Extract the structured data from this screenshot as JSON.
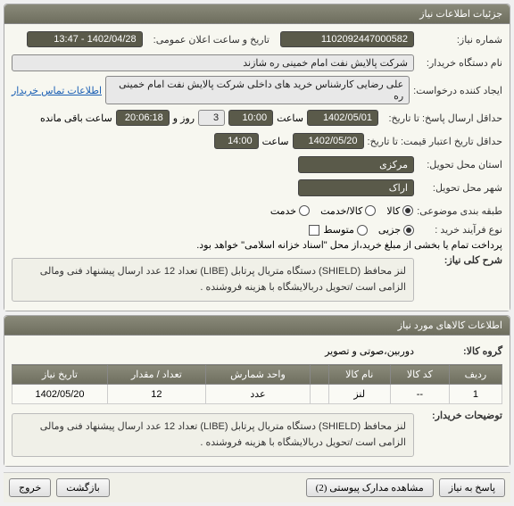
{
  "panels": {
    "details": {
      "title": "جزئیات اطلاعات نیاز",
      "fields": {
        "need_number_label": "شماره نیاز:",
        "need_number": "1102092447000582",
        "announce_label": "تاریخ و ساعت اعلان عمومی:",
        "announce_value": "1402/04/28 - 13:47",
        "buyer_label": "نام دستگاه خریدار:",
        "buyer_value": "شركت پالایش نفت امام خمینی  ره  شازند",
        "creator_label": "ایجاد کننده درخواست:",
        "creator_value": "علی  رضایی كارشناس خرید های داخلی  شركت پالایش نفت امام خمینی  ره",
        "contact_link": "اطلاعات تماس خریدار",
        "deadline_label": "حداقل ارسال پاسخ: تا تاریخ:",
        "deadline_date": "1402/05/01",
        "deadline_time_label": "ساعت",
        "deadline_time": "10:00",
        "days_label": "روز و",
        "days": "3",
        "remaining_time": "20:06:18",
        "remaining_label": "ساعت باقی مانده",
        "validity_label": "حداقل تاریخ اعتبار قیمت: تا تاریخ:",
        "validity_date": "1402/05/20",
        "validity_time_label": "ساعت",
        "validity_time": "14:00",
        "delivery_province_label": "استان محل تحویل:",
        "delivery_province": "مركزی",
        "delivery_city_label": "شهر محل تحویل:",
        "delivery_city": "اراک",
        "categorize_label": "طبقه بندی موضوعی:",
        "cat_goods": "کالا",
        "cat_service": "کالا/خدمت",
        "cat_serviceonly": "خدمت",
        "process_label": "نوع فرآیند خرید :",
        "proc_partial": "جزیی",
        "proc_medium": "متوسط",
        "payment_note": "پرداخت تمام یا بخشی از مبلغ خرید،از محل \"اسناد خزانه اسلامی\" خواهد بود.",
        "summary_label": "شرح کلی نیاز:",
        "summary_text": "لنز محافظ (SHIELD) دستگاه متریال پرتابل (LIBE)    تعداد 12 عدد ارسال پیشنهاد فنی ومالی الزامی است /تحویل دربالایشگاه با هزینه فروشنده ."
      }
    },
    "items": {
      "title": "اطلاعات کالاهای مورد نیاز",
      "group_label": "گروه کالا:",
      "group_value": "دوربین،صوتی و تصویر",
      "columns": [
        "ردیف",
        "کد کالا",
        "نام کالا",
        "",
        "واحد شمارش",
        "تعداد / مقدار",
        "تاریخ نیاز"
      ],
      "rows": [
        [
          "1",
          "--",
          "لنز",
          "",
          "عدد",
          "12",
          "1402/05/20"
        ]
      ],
      "buyer_notes_label": "توضیحات خریدار:",
      "buyer_notes": "لنز محافظ (SHIELD) دستگاه متریال پرتابل (LIBE)    تعداد 12 عدد ارسال پیشنهاد فنی ومالی الزامی است /تحویل دربالایشگاه با هزینه فروشنده ."
    }
  },
  "footer": {
    "respond": "پاسخ به نیاز",
    "attachments": "مشاهده مدارک پیوستی (2)",
    "back": "بازگشت",
    "exit": "خروج"
  },
  "colors": {
    "header_bg_top": "#8a8a7a",
    "header_bg_bottom": "#6e6e5e",
    "field_dark": "#5a5a4a",
    "link": "#1a5fb4"
  }
}
